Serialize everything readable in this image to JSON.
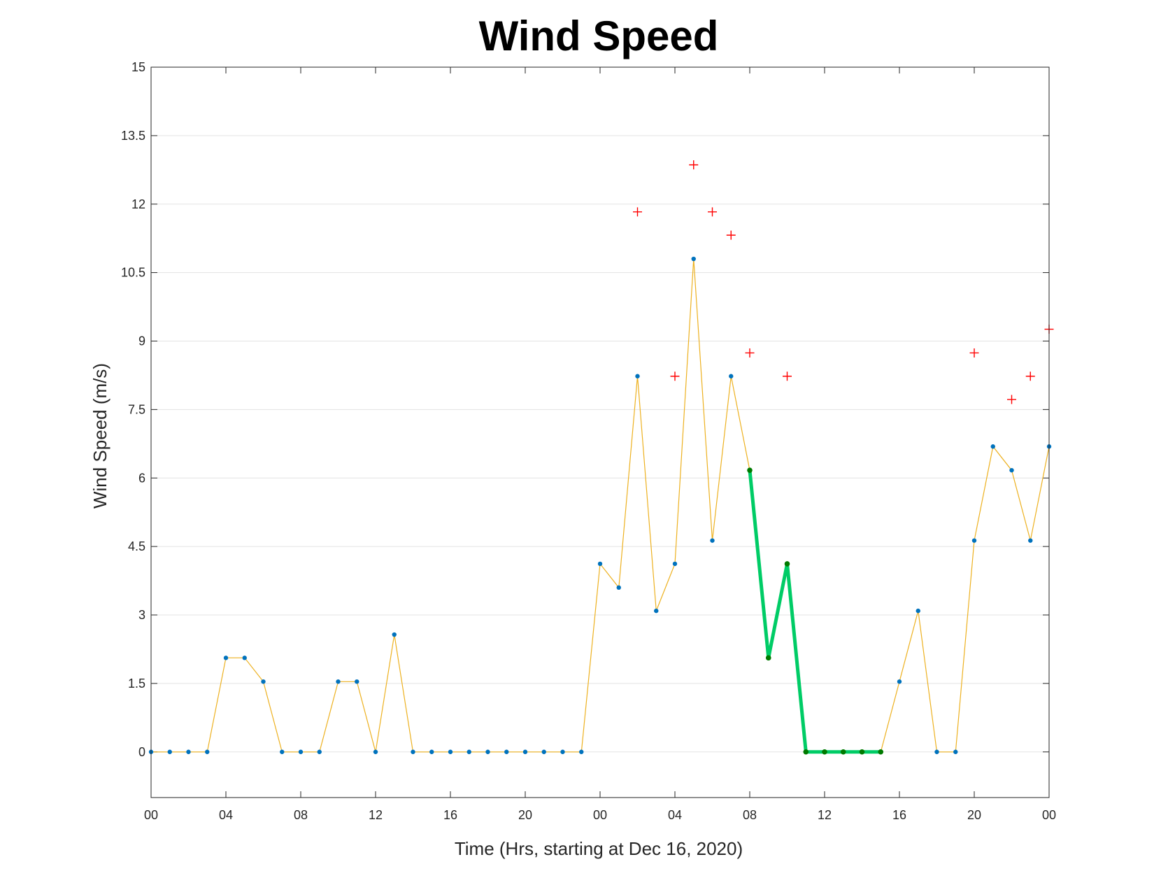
{
  "chart_data": {
    "type": "line",
    "title": "Wind Speed",
    "xlabel": "Time (Hrs, starting at Dec 16, 2020)",
    "ylabel": "Wind Speed (m/s)",
    "xlim": [
      0,
      48
    ],
    "ylim": [
      -1,
      15
    ],
    "grid": "horizontal",
    "x_ticks": [
      {
        "x": 0,
        "label": "00"
      },
      {
        "x": 4,
        "label": "04"
      },
      {
        "x": 8,
        "label": "08"
      },
      {
        "x": 12,
        "label": "12"
      },
      {
        "x": 16,
        "label": "16"
      },
      {
        "x": 20,
        "label": "20"
      },
      {
        "x": 24,
        "label": "00"
      },
      {
        "x": 28,
        "label": "04"
      },
      {
        "x": 32,
        "label": "08"
      },
      {
        "x": 36,
        "label": "12"
      },
      {
        "x": 40,
        "label": "16"
      },
      {
        "x": 44,
        "label": "20"
      },
      {
        "x": 48,
        "label": "00"
      }
    ],
    "y_ticks": [
      {
        "y": 0,
        "label": "0"
      },
      {
        "y": 1.5,
        "label": "1.5"
      },
      {
        "y": 3,
        "label": "3"
      },
      {
        "y": 4.5,
        "label": "4.5"
      },
      {
        "y": 6,
        "label": "6"
      },
      {
        "y": 7.5,
        "label": "7.5"
      },
      {
        "y": 9,
        "label": "9"
      },
      {
        "y": 10.5,
        "label": "10.5"
      },
      {
        "y": 12,
        "label": "12"
      },
      {
        "y": 13.5,
        "label": "13.5"
      },
      {
        "y": 15,
        "label": "15"
      }
    ],
    "series": [
      {
        "style": "line-with-dots",
        "color": "#EDB120",
        "marker_color": "#0072BD",
        "x": [
          0,
          1,
          2,
          3,
          4,
          5,
          6,
          7,
          8,
          9,
          10,
          11,
          12,
          13,
          14,
          15,
          16,
          17,
          18,
          19,
          20,
          21,
          22,
          23,
          24,
          25,
          26,
          27,
          28,
          29,
          30,
          31,
          32,
          33,
          34,
          35,
          36,
          37,
          38,
          39,
          40,
          41,
          42,
          43,
          44,
          45,
          46,
          47,
          48
        ],
        "y": [
          0,
          0,
          0,
          0,
          2.06,
          2.06,
          1.54,
          0,
          0,
          0,
          1.54,
          1.54,
          0,
          2.57,
          0,
          0,
          0,
          0,
          0,
          0,
          0,
          0,
          0,
          0,
          4.12,
          3.6,
          8.23,
          3.09,
          4.12,
          10.8,
          4.63,
          8.23,
          6.17,
          2.06,
          4.12,
          0,
          0,
          0,
          0,
          0,
          1.54,
          3.09,
          0,
          0,
          4.63,
          6.69,
          6.17,
          4.63,
          6.69
        ]
      },
      {
        "style": "highlight-line",
        "color": "#00CC66",
        "marker_color": "#007A00",
        "x": [
          32,
          33,
          34,
          35,
          36,
          37,
          38,
          39
        ],
        "y": [
          6.17,
          2.06,
          4.12,
          0,
          0,
          0,
          0,
          0
        ]
      },
      {
        "style": "plus-markers",
        "color": "#FF0000",
        "x": [
          26,
          28,
          29,
          30,
          31,
          32,
          34,
          44,
          46,
          47,
          48
        ],
        "y": [
          11.83,
          8.23,
          12.86,
          11.83,
          11.32,
          8.74,
          8.23,
          8.74,
          7.72,
          8.23,
          9.26
        ]
      }
    ]
  }
}
